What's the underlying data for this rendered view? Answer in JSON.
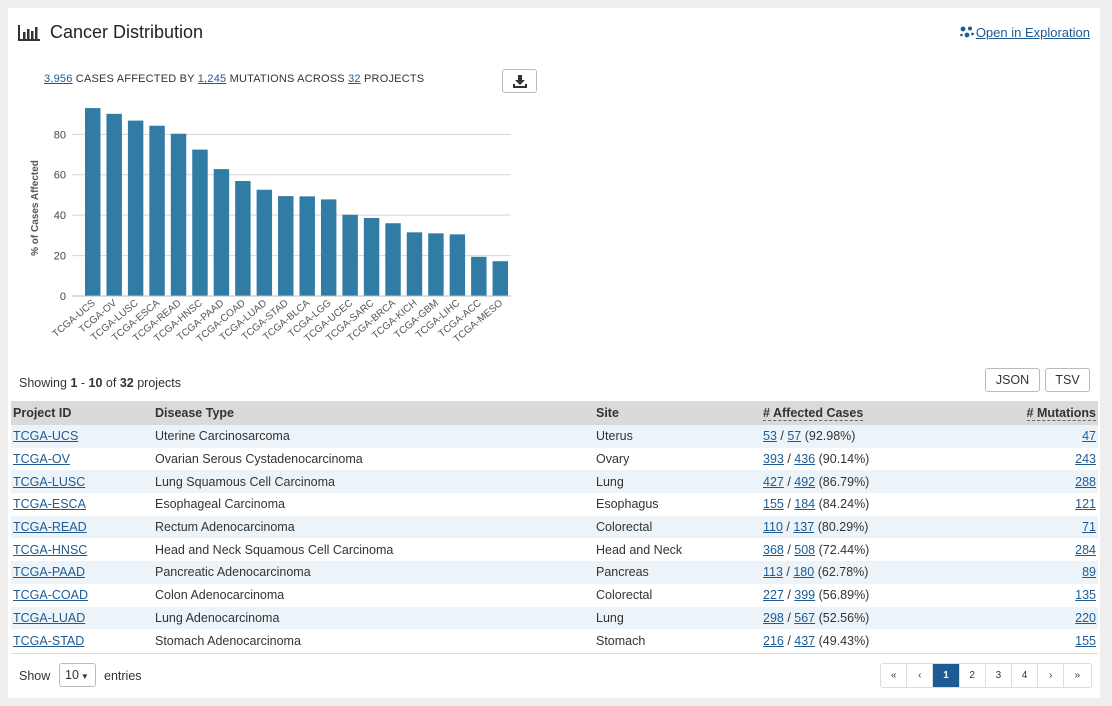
{
  "header": {
    "title": "Cancer Distribution",
    "title_icon": "bar-chart-icon",
    "open_link": "Open in Exploration",
    "open_link_icon": "network-icon"
  },
  "summary": {
    "cases": "3,956",
    "text1": "CASES AFFECTED BY",
    "mutations": "1,245",
    "text2": "MUTATIONS ACROSS",
    "projects": "32",
    "text3": "PROJECTS",
    "download_icon": "download-icon"
  },
  "chart_data": {
    "type": "bar",
    "title": "",
    "xlabel": "",
    "ylabel": "% of Cases Affected",
    "ylim": [
      0,
      95
    ],
    "yticks": [
      0,
      20,
      40,
      60,
      80
    ],
    "grid": true,
    "bar_color": "#317ca5",
    "categories": [
      "TCGA-UCS",
      "TCGA-OV",
      "TCGA-LUSC",
      "TCGA-ESCA",
      "TCGA-READ",
      "TCGA-HNSC",
      "TCGA-PAAD",
      "TCGA-COAD",
      "TCGA-LUAD",
      "TCGA-STAD",
      "TCGA-BLCA",
      "TCGA-LGG",
      "TCGA-UCEC",
      "TCGA-SARC",
      "TCGA-BRCA",
      "TCGA-KICH",
      "TCGA-GBM",
      "TCGA-LIHC",
      "TCGA-ACC",
      "TCGA-MESO"
    ],
    "values": [
      92.98,
      90.14,
      86.79,
      84.24,
      80.29,
      72.44,
      62.78,
      56.89,
      52.56,
      49.43,
      49.3,
      47.8,
      40.2,
      38.6,
      36.0,
      31.5,
      31.0,
      30.5,
      19.4,
      17.2
    ]
  },
  "listing": {
    "showing": "Showing",
    "from": "1",
    "sep": "-",
    "to": "10",
    "of": "of",
    "total": "32",
    "unit": "projects",
    "json_btn": "JSON",
    "tsv_btn": "TSV"
  },
  "table": {
    "headers": [
      "Project ID",
      "Disease Type",
      "Site",
      "# Affected Cases",
      "# Mutations"
    ],
    "rows": [
      {
        "project": "TCGA-UCS",
        "disease": "Uterine Carcinosarcoma",
        "site": "Uterus",
        "affected": "53",
        "total": "57",
        "pct": "(92.98%)",
        "mutations": "47"
      },
      {
        "project": "TCGA-OV",
        "disease": "Ovarian Serous Cystadenocarcinoma",
        "site": "Ovary",
        "affected": "393",
        "total": "436",
        "pct": "(90.14%)",
        "mutations": "243"
      },
      {
        "project": "TCGA-LUSC",
        "disease": "Lung Squamous Cell Carcinoma",
        "site": "Lung",
        "affected": "427",
        "total": "492",
        "pct": "(86.79%)",
        "mutations": "288"
      },
      {
        "project": "TCGA-ESCA",
        "disease": "Esophageal Carcinoma",
        "site": "Esophagus",
        "affected": "155",
        "total": "184",
        "pct": "(84.24%)",
        "mutations": "121"
      },
      {
        "project": "TCGA-READ",
        "disease": "Rectum Adenocarcinoma",
        "site": "Colorectal",
        "affected": "110",
        "total": "137",
        "pct": "(80.29%)",
        "mutations": "71"
      },
      {
        "project": "TCGA-HNSC",
        "disease": "Head and Neck Squamous Cell Carcinoma",
        "site": "Head and Neck",
        "affected": "368",
        "total": "508",
        "pct": "(72.44%)",
        "mutations": "284"
      },
      {
        "project": "TCGA-PAAD",
        "disease": "Pancreatic Adenocarcinoma",
        "site": "Pancreas",
        "affected": "113",
        "total": "180",
        "pct": "(62.78%)",
        "mutations": "89"
      },
      {
        "project": "TCGA-COAD",
        "disease": "Colon Adenocarcinoma",
        "site": "Colorectal",
        "affected": "227",
        "total": "399",
        "pct": "(56.89%)",
        "mutations": "135"
      },
      {
        "project": "TCGA-LUAD",
        "disease": "Lung Adenocarcinoma",
        "site": "Lung",
        "affected": "298",
        "total": "567",
        "pct": "(52.56%)",
        "mutations": "220"
      },
      {
        "project": "TCGA-STAD",
        "disease": "Stomach Adenocarcinoma",
        "site": "Stomach",
        "affected": "216",
        "total": "437",
        "pct": "(49.43%)",
        "mutations": "155"
      }
    ]
  },
  "footer": {
    "show": "Show",
    "page_size": "10",
    "entries": "entries",
    "pager": [
      "«",
      "‹",
      "1",
      "2",
      "3",
      "4",
      "›",
      "»"
    ],
    "active_page": "1"
  },
  "colors": {
    "link": "#1d5b94",
    "bar": "#317ca5",
    "row_stripe": "#edf4f9",
    "header_bg": "#dadada"
  }
}
